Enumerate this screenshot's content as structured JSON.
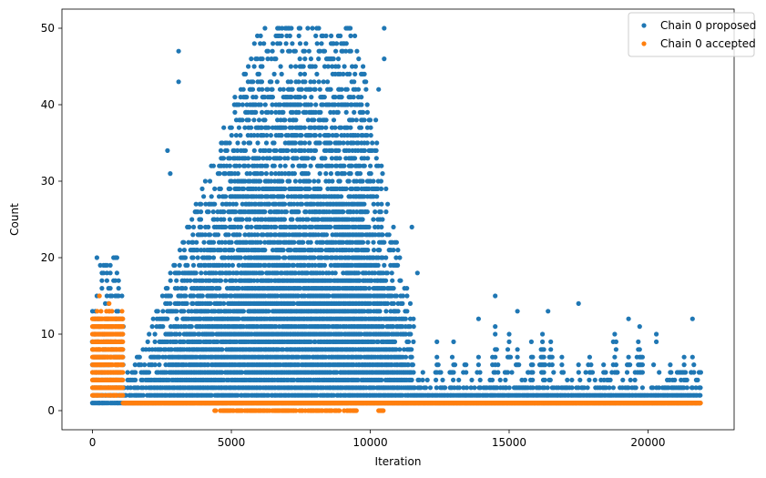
{
  "chart_data": {
    "type": "scatter",
    "title": "",
    "xlabel": "Iteration",
    "ylabel": "Count",
    "xlim": [
      -1100,
      23100
    ],
    "ylim": [
      -2.5,
      52.5
    ],
    "xticks": [
      0,
      5000,
      10000,
      15000,
      20000
    ],
    "yticks": [
      0,
      10,
      20,
      30,
      40,
      50
    ],
    "grid": false,
    "legend_position": "top-right",
    "series": [
      {
        "name": "Chain 0 proposed",
        "color": "#1f77b4",
        "description_segments": [
          {
            "x_range": [
              0,
              1100
            ],
            "y_range": [
              1,
              20
            ],
            "note": "warmup block, dense 1-13, sparse up to 20"
          },
          {
            "x_range": [
              1100,
              2000
            ],
            "y_range": [
              1,
              10
            ]
          },
          {
            "x_range": [
              2000,
              4000
            ],
            "y_range": [
              1,
              30
            ]
          },
          {
            "x_range": [
              4000,
              9500
            ],
            "y_range": [
              1,
              50
            ]
          },
          {
            "x_range": [
              9500,
              11600
            ],
            "y_range": [
              1,
              30
            ]
          },
          {
            "x_range": [
              11600,
              21900
            ],
            "y_range": [
              1,
              15
            ],
            "note": "mostly 1-5 with periodic spikes"
          }
        ],
        "spikes": [
          {
            "x": 3100,
            "y": 47
          },
          {
            "x": 3100,
            "y": 43
          },
          {
            "x": 2700,
            "y": 34
          },
          {
            "x": 2800,
            "y": 31
          },
          {
            "x": 10500,
            "y": 50
          },
          {
            "x": 10500,
            "y": 46
          },
          {
            "x": 10300,
            "y": 42
          },
          {
            "x": 10200,
            "y": 38
          },
          {
            "x": 14500,
            "y": 15
          },
          {
            "x": 13900,
            "y": 12
          },
          {
            "x": 15300,
            "y": 13
          },
          {
            "x": 16400,
            "y": 13
          },
          {
            "x": 17500,
            "y": 14
          },
          {
            "x": 19300,
            "y": 12
          },
          {
            "x": 20300,
            "y": 10
          },
          {
            "x": 21600,
            "y": 12
          },
          {
            "x": 12400,
            "y": 9
          },
          {
            "x": 11500,
            "y": 24
          },
          {
            "x": 11700,
            "y": 18
          }
        ]
      },
      {
        "name": "Chain 0 accepted",
        "color": "#ff7f0e",
        "description_segments": [
          {
            "x_range": [
              0,
              1100
            ],
            "y_range": [
              2,
              15
            ],
            "note": "warmup, dense 3-12"
          },
          {
            "x_range": [
              1100,
              21900
            ],
            "y_values": [
              1
            ],
            "note": "constant at 1"
          },
          {
            "x_range": [
              4400,
              9500
            ],
            "y_values": [
              0
            ],
            "note": "occasional 0 values"
          },
          {
            "x_range": [
              10300,
              10500
            ],
            "y_values": [
              0
            ]
          }
        ]
      }
    ]
  }
}
